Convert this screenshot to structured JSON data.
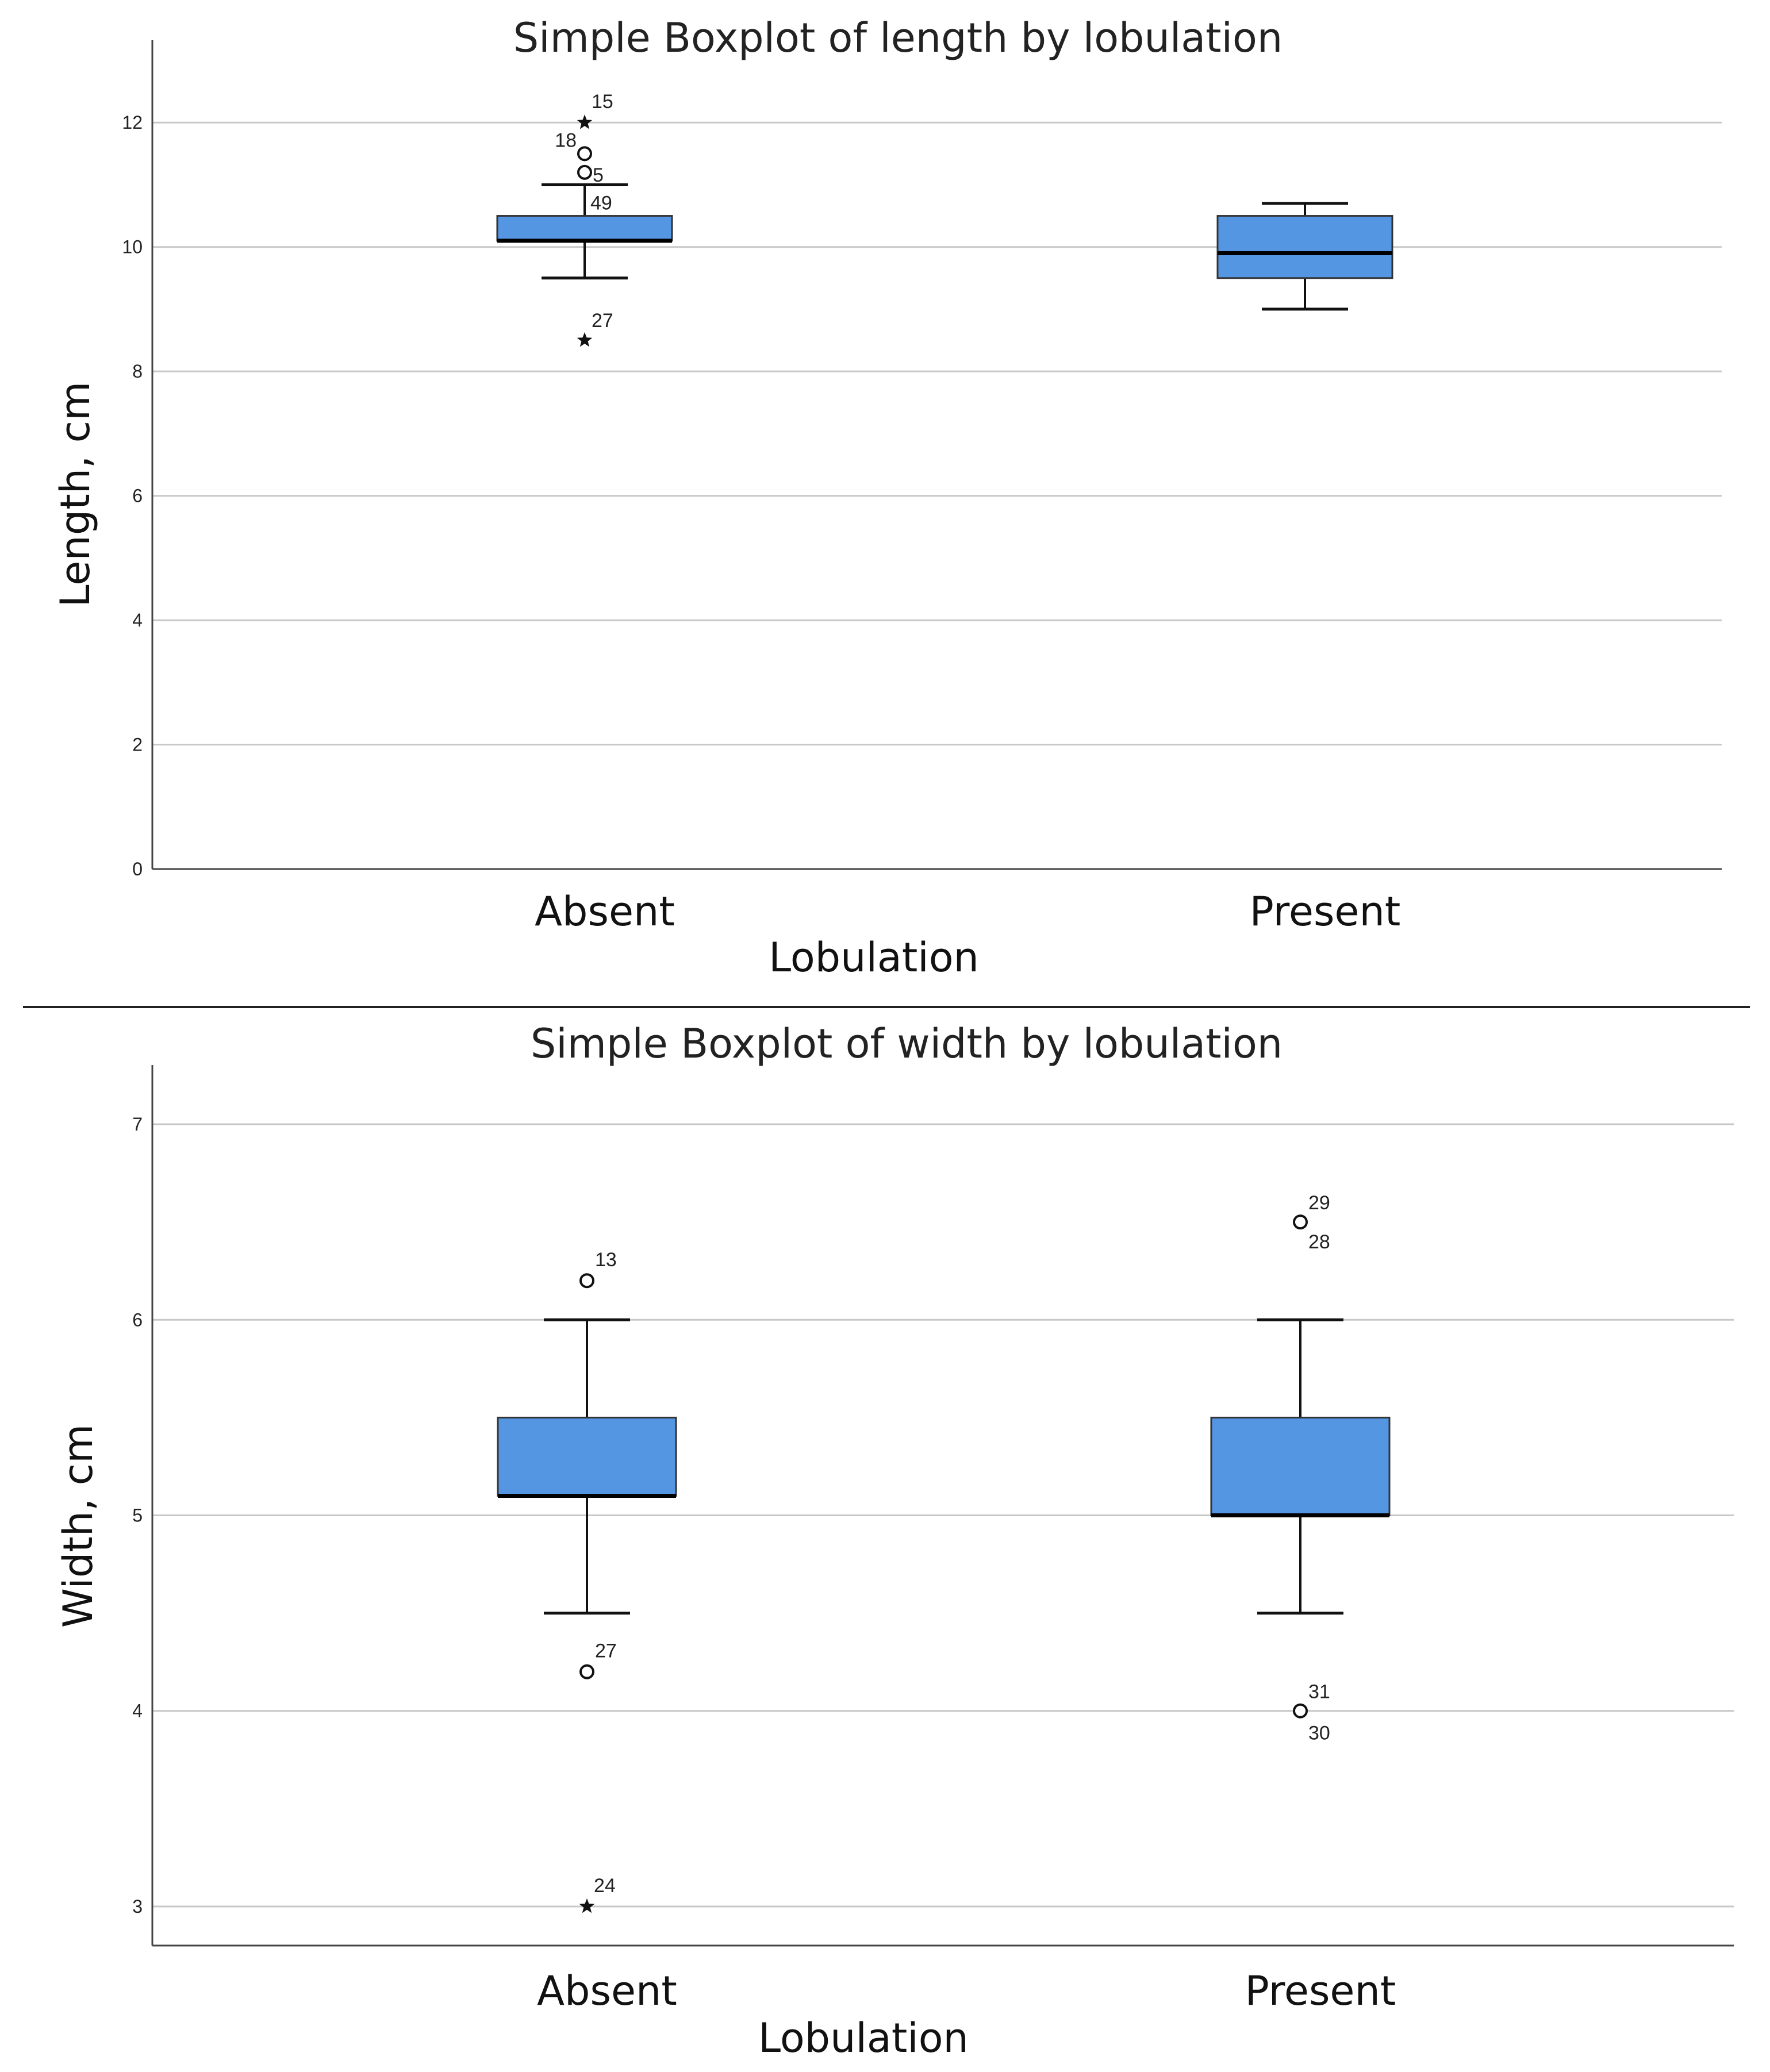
{
  "colors": {
    "box_fill": "#5596E3",
    "box_stroke": "#333333",
    "median": "#000000",
    "gridline": "#C8C8C8",
    "axis": "#444444",
    "separator": "#222222"
  },
  "chart_data": [
    {
      "type": "boxplot",
      "title": "Simple Boxplot of length by lobulation",
      "xlabel": "Lobulation",
      "ylabel": "Length, cm",
      "ylim": [
        0,
        13
      ],
      "yticks": [
        0,
        2,
        4,
        6,
        8,
        10,
        12
      ],
      "tick_labels": [
        "0",
        "2",
        "4",
        "6",
        "8",
        "10",
        "12"
      ],
      "grid": true,
      "categories": [
        "Absent",
        "Present"
      ],
      "boxes": [
        {
          "category": "Absent",
          "whisker_low": 9.5,
          "q1": 10.1,
          "median": 10.1,
          "q3": 10.5,
          "whisker_high": 11.0,
          "outliers": [
            {
              "value": 12.0,
              "label": "15",
              "marker": "star"
            },
            {
              "value": 11.5,
              "label": "18",
              "marker": "circle"
            },
            {
              "value": 11.2,
              "label": "5",
              "marker": "circle"
            },
            {
              "value": 10.9,
              "label": "49",
              "marker": "none"
            },
            {
              "value": 8.5,
              "label": "27",
              "marker": "star"
            }
          ]
        },
        {
          "category": "Present",
          "whisker_low": 9.0,
          "q1": 9.5,
          "median": 9.9,
          "q3": 10.5,
          "whisker_high": 10.7,
          "outliers": []
        }
      ]
    },
    {
      "type": "boxplot",
      "title": "Simple Boxplot of width by lobulation",
      "xlabel": "Lobulation",
      "ylabel": "Width, cm",
      "ylim": [
        2.8,
        7.2
      ],
      "yticks": [
        3,
        4,
        5,
        6,
        7
      ],
      "tick_labels": [
        "3",
        "4",
        "5",
        "6",
        "7"
      ],
      "grid": true,
      "categories": [
        "Absent",
        "Present"
      ],
      "boxes": [
        {
          "category": "Absent",
          "whisker_low": 4.5,
          "q1": 5.1,
          "median": 5.1,
          "q3": 5.5,
          "whisker_high": 6.0,
          "outliers": [
            {
              "value": 6.2,
              "label": "13",
              "marker": "circle"
            },
            {
              "value": 4.2,
              "label": "27",
              "marker": "circle"
            },
            {
              "value": 3.0,
              "label": "24",
              "marker": "star"
            }
          ]
        },
        {
          "category": "Present",
          "whisker_low": 4.5,
          "q1": 5.0,
          "median": 5.0,
          "q3": 5.5,
          "whisker_high": 6.0,
          "outliers": [
            {
              "value": 6.5,
              "label": "29",
              "marker": "circle"
            },
            {
              "value": 6.5,
              "label": "28",
              "marker": "none"
            },
            {
              "value": 4.0,
              "label": "31",
              "marker": "circle"
            },
            {
              "value": 4.0,
              "label": "30",
              "marker": "none"
            }
          ]
        }
      ]
    }
  ]
}
